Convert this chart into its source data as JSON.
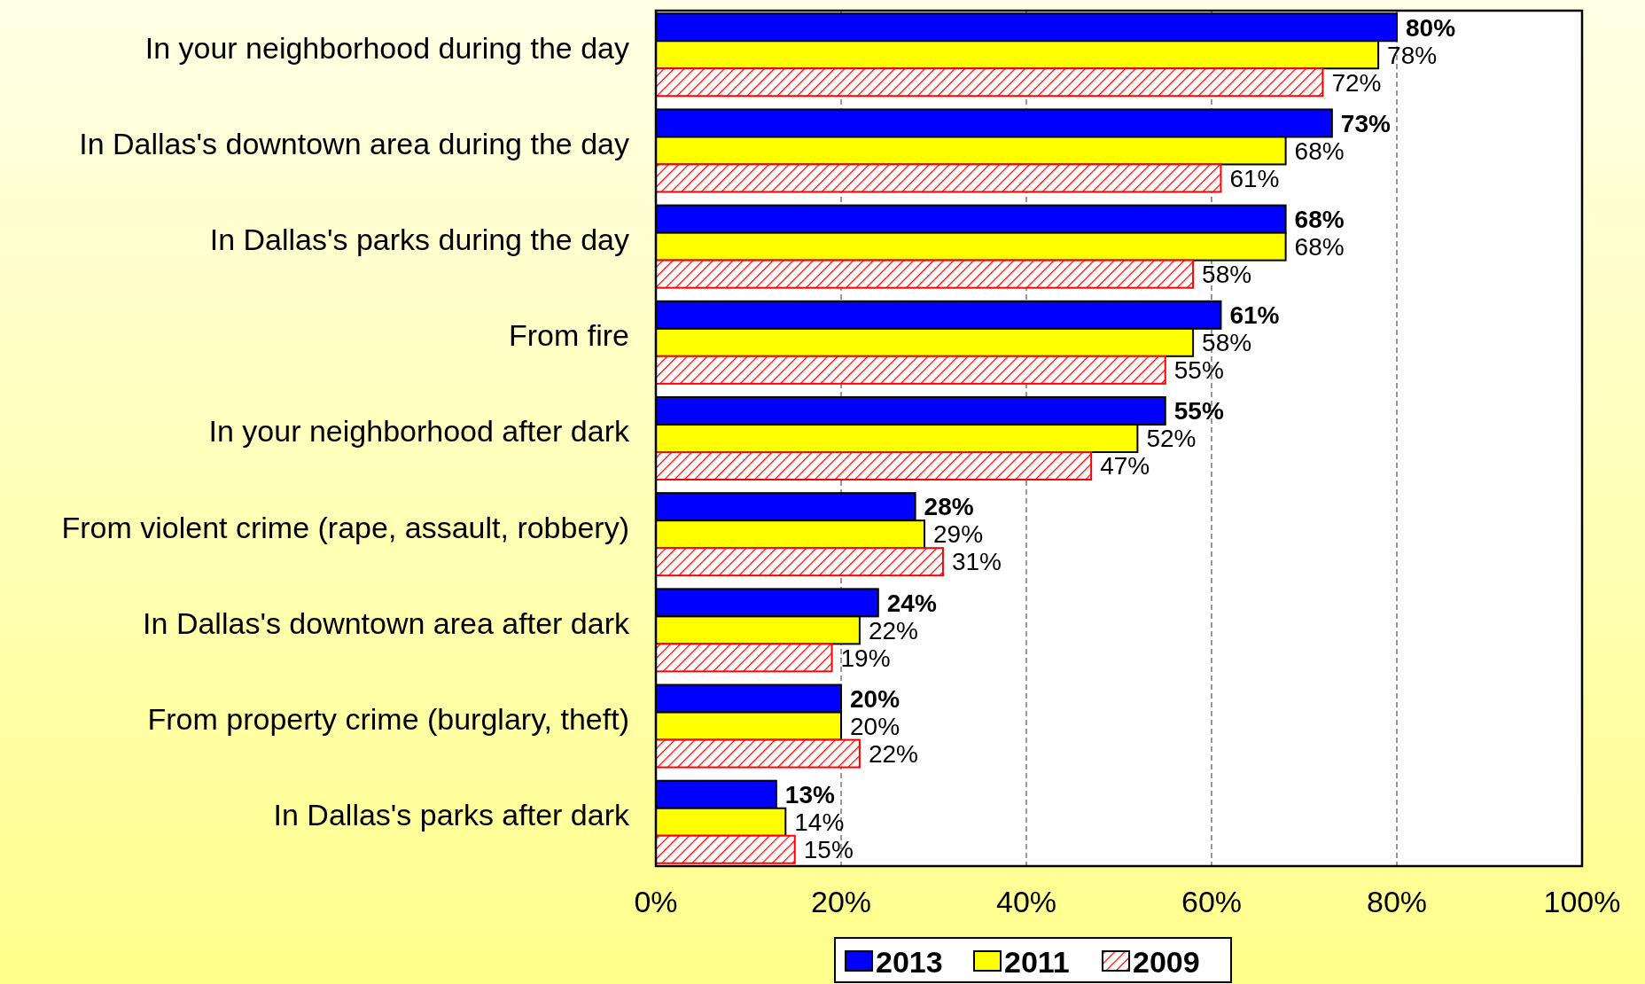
{
  "chart_data": {
    "type": "bar",
    "orientation": "horizontal",
    "categories": [
      "In your neighborhood during the day",
      "In Dallas's downtown area during the day",
      "In Dallas's parks during the day",
      "From fire",
      "In your neighborhood after dark",
      "From violent crime (rape, assault, robbery)",
      "In Dallas's downtown area after dark",
      "From property crime (burglary, theft)",
      "In Dallas's parks after dark"
    ],
    "series": [
      {
        "name": "2013",
        "color": "#0000ff",
        "values": [
          80,
          73,
          68,
          61,
          55,
          28,
          24,
          20,
          13
        ],
        "value_labels": [
          "80%",
          "73%",
          "68%",
          "61%",
          "55%",
          "28%",
          "24%",
          "20%",
          "13%"
        ]
      },
      {
        "name": "2011",
        "color": "#ffff00",
        "values": [
          78,
          68,
          68,
          58,
          52,
          29,
          22,
          20,
          14
        ],
        "value_labels": [
          "78%",
          "68%",
          "68%",
          "58%",
          "52%",
          "29%",
          "22%",
          "20%",
          "14%"
        ]
      },
      {
        "name": "2009",
        "color": "#ff0000",
        "values": [
          72,
          61,
          58,
          55,
          47,
          31,
          19,
          22,
          15
        ],
        "value_labels": [
          "72%",
          "61%",
          "58%",
          "55%",
          "47%",
          "31%",
          "19%",
          "22%",
          "15%"
        ]
      }
    ],
    "xlim": [
      0,
      100
    ],
    "xticks": [
      {
        "value": 0,
        "label": "0%"
      },
      {
        "value": 20,
        "label": "20%"
      },
      {
        "value": 40,
        "label": "40%"
      },
      {
        "value": 60,
        "label": "60%"
      },
      {
        "value": 80,
        "label": "80%"
      },
      {
        "value": 100,
        "label": "100%"
      }
    ],
    "grid": "x",
    "legend": "bottom"
  }
}
